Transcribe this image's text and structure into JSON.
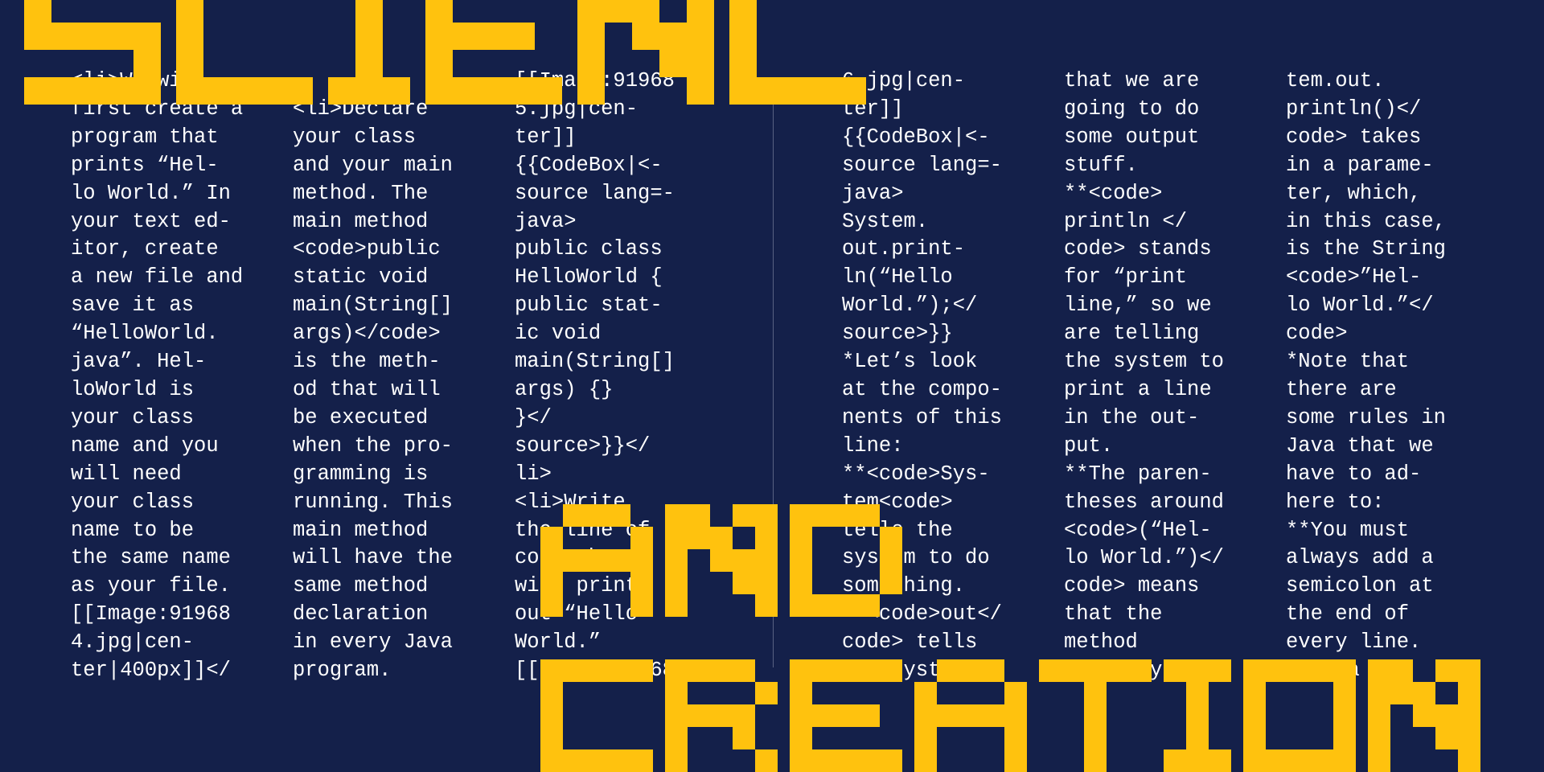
{
  "title": {
    "word1": "SCIENCE",
    "word2": "AND",
    "word3": "CREATION"
  },
  "colors": {
    "background": "#14204a",
    "title": "#ffc20e",
    "text": "#ffffff"
  },
  "columns": [
    {
      "lines": [
        "<li>We will",
        "first create a",
        "program that",
        "prints “Hel-",
        "lo World.” In",
        "your text ed-",
        "itor, create",
        "a new file and",
        "save it as",
        "“HelloWorld.",
        "java”. Hel-",
        "loWorld is",
        "your class",
        "name and you",
        "will need",
        "your class",
        "name to be",
        "the same name",
        "as your file.",
        "[[Image:91968",
        "4.jpg|cen-",
        "ter|400px]]</"
      ]
    },
    {
      "lines": [
        "",
        "<li>Declare",
        "your class",
        "and your main",
        "method. The",
        "main method",
        "<code>public",
        "static void",
        "main(String[]",
        "args)</code>",
        "is the meth-",
        "od that will",
        "be executed",
        "when the pro-",
        "gramming is",
        "running. This",
        "main method",
        "will have the",
        "same method",
        "declaration",
        "in every Java",
        "program."
      ]
    },
    {
      "lines": [
        "[[Image:91968",
        "5.jpg|cen-",
        "ter]]",
        "{{CodeBox|<-",
        "source lang=-",
        "java>",
        "public class",
        "HelloWorld {",
        "public stat-",
        "ic void",
        "main(String[]",
        "args) {}",
        "}</",
        "source>}}</",
        "li>",
        "<li>Write",
        "the line of",
        "code that",
        "will print",
        "out “Hello",
        "World.”",
        "[[Image:91968"
      ]
    },
    {
      "lines": [
        "6.jpg|cen-",
        "ter]]",
        "{{CodeBox|<-",
        "source lang=-",
        "java>",
        "System.",
        "out.print-",
        "ln(“Hello",
        "World.”);</",
        "source>}}",
        "*Let’s look",
        "at the compo-",
        "nents of this",
        "line:",
        "**<code>Sys-",
        "tem<code>",
        "tells the",
        "system to do",
        "something.",
        "**<code>out</",
        "code> tells",
        "the system"
      ]
    },
    {
      "lines": [
        "that we are",
        "going to do",
        "some output",
        "stuff.",
        "**<code>",
        "println </",
        "code> stands",
        "for “print",
        "line,” so we",
        "are telling",
        "the system to",
        "print a line",
        "in the out-",
        "put.",
        "**The paren-",
        "theses around",
        "<code>(“Hel-",
        "lo World.”)</",
        "code> means",
        "that the",
        "method",
        "<code>Sys-"
      ]
    },
    {
      "lines": [
        "tem.out.",
        "println()</",
        "code> takes",
        "in a parame-",
        "ter, which,",
        "in this case,",
        "is the String",
        "<code>”Hel-",
        "lo World.”</",
        "code>",
        "*Note that",
        "there are",
        "some rules in",
        "Java that we",
        "have to ad-",
        "here to:",
        "**You must",
        "always add a",
        "semicolon at",
        "the end of",
        "every line.",
        "**Java is"
      ]
    }
  ]
}
